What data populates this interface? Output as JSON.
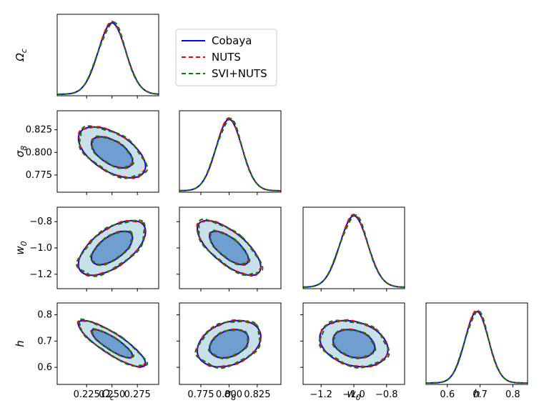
{
  "chart_data": {
    "type": "corner",
    "parameters": [
      {
        "key": "omega_c",
        "label": "Ωc",
        "label_main": "Ω",
        "label_sub": "c",
        "center": 0.25,
        "ticks": [
          0.225,
          0.25,
          0.275
        ],
        "tick_labels": [
          "0.225",
          "0.250",
          "0.275"
        ],
        "range": [
          0.196,
          0.296
        ]
      },
      {
        "key": "sigma8",
        "label": "σ8",
        "label_main": "σ",
        "label_sub": "8",
        "center": 0.8,
        "ticks": [
          0.775,
          0.8,
          0.825
        ],
        "tick_labels": [
          "0.775",
          "0.800",
          "0.825"
        ],
        "range": [
          0.756,
          0.846
        ]
      },
      {
        "key": "w0",
        "label": "w0",
        "label_main": "w",
        "label_sub": "0",
        "center": -1.0,
        "ticks": [
          -1.2,
          -1.0,
          -0.8
        ],
        "tick_labels": [
          "−1.2",
          "−1.0",
          "−0.8"
        ],
        "range": [
          -1.31,
          -0.69
        ]
      },
      {
        "key": "h",
        "label": "h",
        "label_main": "h",
        "label_sub": "",
        "center": 0.69,
        "ticks": [
          0.6,
          0.7,
          0.8
        ],
        "tick_labels": [
          "0.6",
          "0.7",
          "0.8"
        ],
        "range": [
          0.535,
          0.845
        ]
      }
    ],
    "series": [
      {
        "name": "Cobaya",
        "color": "#0000ff",
        "style": "solid"
      },
      {
        "name": "NUTS",
        "color": "#ff0000",
        "style": "dashed"
      },
      {
        "name": "SVI+NUTS",
        "color": "#008000",
        "style": "dashed"
      }
    ],
    "marginals": {
      "omega_c": {
        "sigma": 0.0135
      },
      "sigma8": {
        "sigma": 0.0115
      },
      "w0": {
        "sigma": 0.085
      },
      "h": {
        "sigma": 0.036
      }
    },
    "correlations": [
      {
        "row": "sigma8",
        "col": "omega_c",
        "rho": -0.55
      },
      {
        "row": "w0",
        "col": "omega_c",
        "rho": 0.6
      },
      {
        "row": "w0",
        "col": "sigma8",
        "rho": -0.7
      },
      {
        "row": "h",
        "col": "omega_c",
        "rho": -0.85
      },
      {
        "row": "h",
        "col": "sigma8",
        "rho": 0.3
      },
      {
        "row": "h",
        "col": "w0",
        "rho": -0.25
      }
    ],
    "contour_levels": [
      "68%",
      "95%"
    ],
    "fill_colors": {
      "inner": "#6f9ed0",
      "outer": "#c8e0ea"
    },
    "legend": {
      "position": "top-right of first marginal"
    }
  }
}
